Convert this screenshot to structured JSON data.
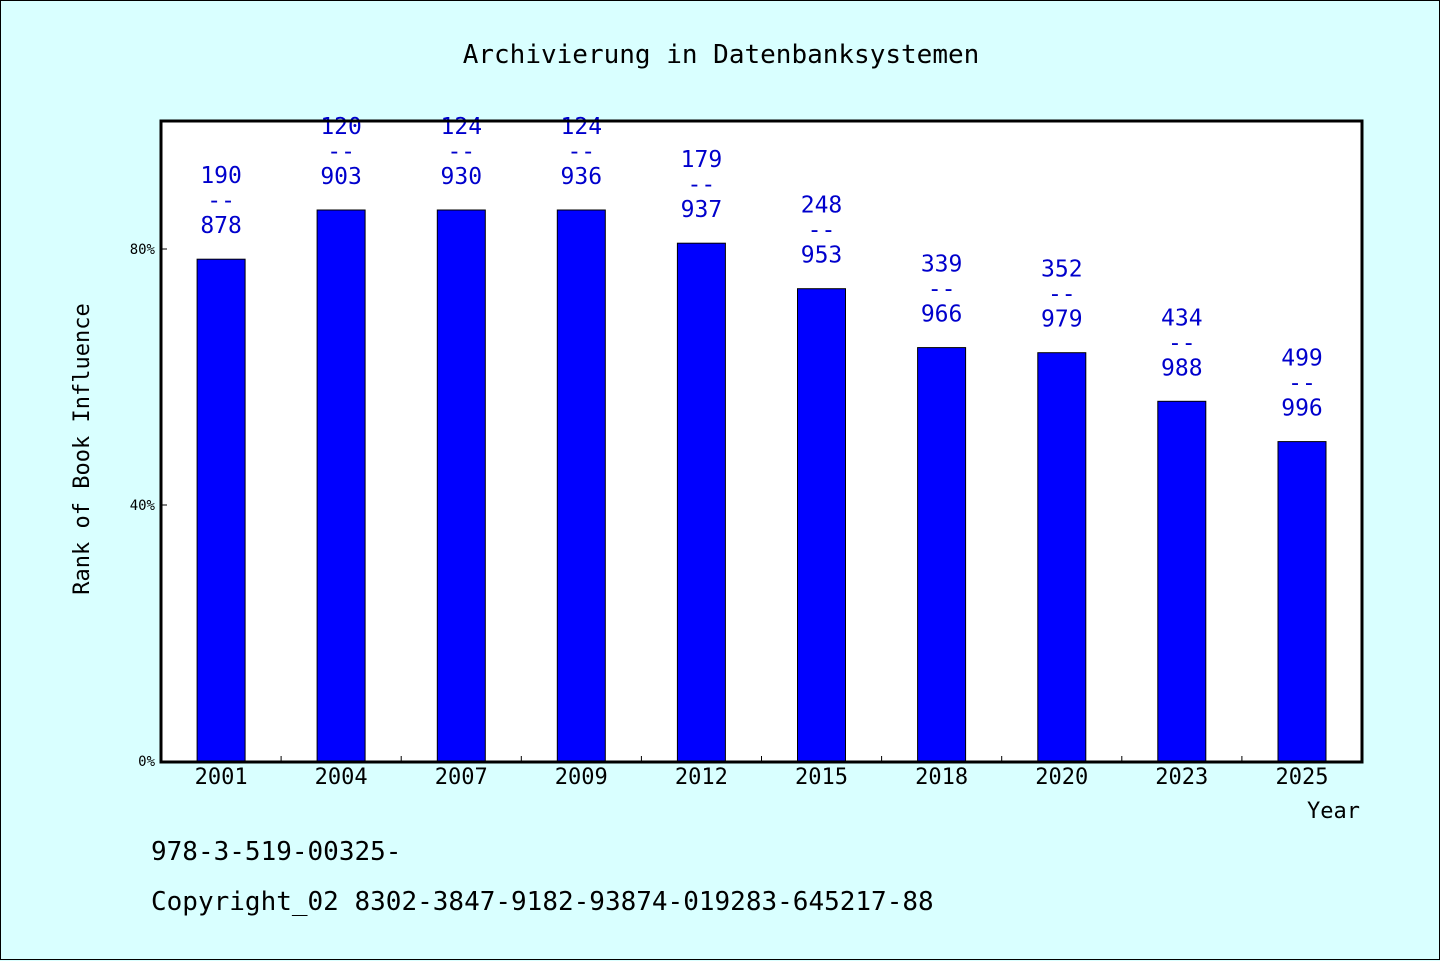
{
  "chart_data": {
    "type": "bar",
    "title": "Archivierung in Datenbanksystemen",
    "xlabel": "Year",
    "ylabel": "Rank of Book Influence",
    "categories": [
      "2001",
      "2004",
      "2007",
      "2009",
      "2012",
      "2015",
      "2018",
      "2020",
      "2023",
      "2025"
    ],
    "values": [
      78.4,
      86.1,
      86.1,
      86.1,
      80.9,
      73.8,
      64.6,
      63.8,
      56.2,
      49.9
    ],
    "annotations": [
      {
        "top": "190",
        "sep": "--",
        "bottom": "878"
      },
      {
        "top": "120",
        "sep": "--",
        "bottom": "903"
      },
      {
        "top": "124",
        "sep": "--",
        "bottom": "930"
      },
      {
        "top": "124",
        "sep": "--",
        "bottom": "936"
      },
      {
        "top": "179",
        "sep": "--",
        "bottom": "937"
      },
      {
        "top": "248",
        "sep": "--",
        "bottom": "953"
      },
      {
        "top": "339",
        "sep": "--",
        "bottom": "966"
      },
      {
        "top": "352",
        "sep": "--",
        "bottom": "979"
      },
      {
        "top": "434",
        "sep": "--",
        "bottom": "988"
      },
      {
        "top": "499",
        "sep": "--",
        "bottom": "996"
      }
    ],
    "yticks": [
      0,
      40,
      80
    ],
    "ytick_labels": [
      "0%",
      "40%",
      "80%"
    ],
    "ylim": [
      0,
      100
    ],
    "grid": false,
    "bar_color": "#0000ff",
    "label_color": "#0000cc",
    "plot_background": "#ffffff",
    "page_background": "#d9ffff"
  },
  "footer": {
    "isbn": "978-3-519-00325-",
    "copyright": "Copyright_02 8302-3847-9182-93874-019283-645217-88"
  }
}
